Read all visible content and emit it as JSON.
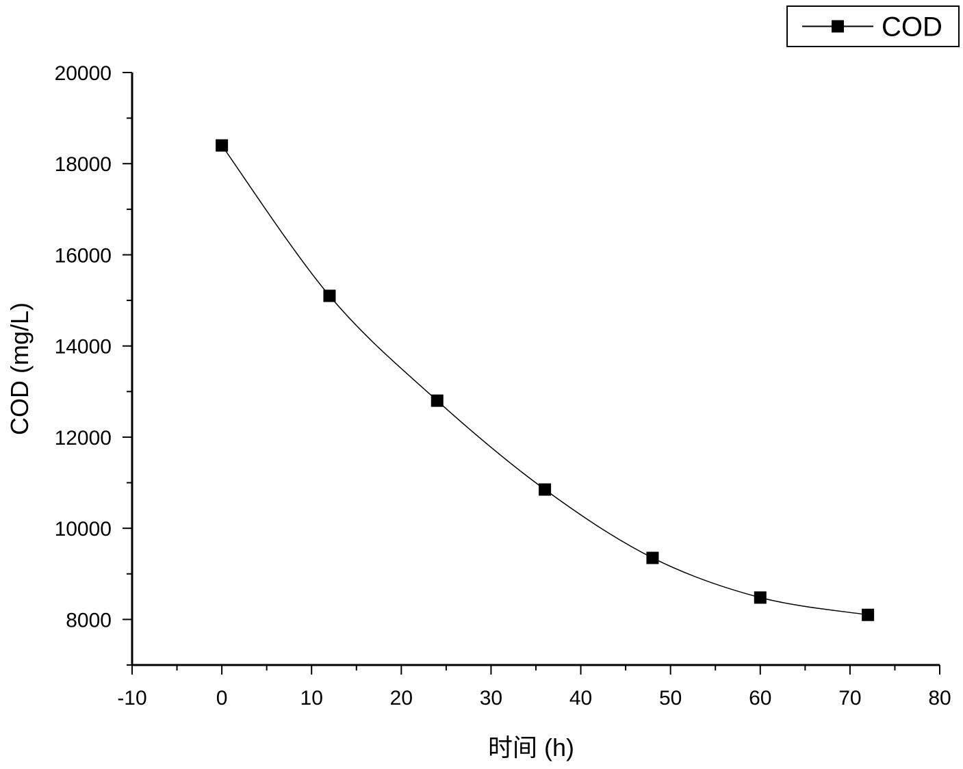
{
  "chart_data": {
    "type": "line",
    "title": "",
    "xlabel": "时间 (h)",
    "ylabel": "COD (mg/L)",
    "xlim": [
      -10,
      80
    ],
    "ylim": [
      7000,
      20000
    ],
    "x_ticks": [
      -10,
      0,
      10,
      20,
      30,
      40,
      50,
      60,
      70,
      80
    ],
    "y_ticks": [
      8000,
      10000,
      12000,
      14000,
      16000,
      18000,
      20000
    ],
    "grid": false,
    "legend_position": "top-right",
    "series": [
      {
        "name": "COD",
        "color": "#000000",
        "marker": "square",
        "smooth": true,
        "x": [
          0,
          12,
          24,
          36,
          48,
          60,
          72
        ],
        "y": [
          18400,
          15100,
          12800,
          10850,
          9350,
          8480,
          8100
        ]
      }
    ]
  }
}
